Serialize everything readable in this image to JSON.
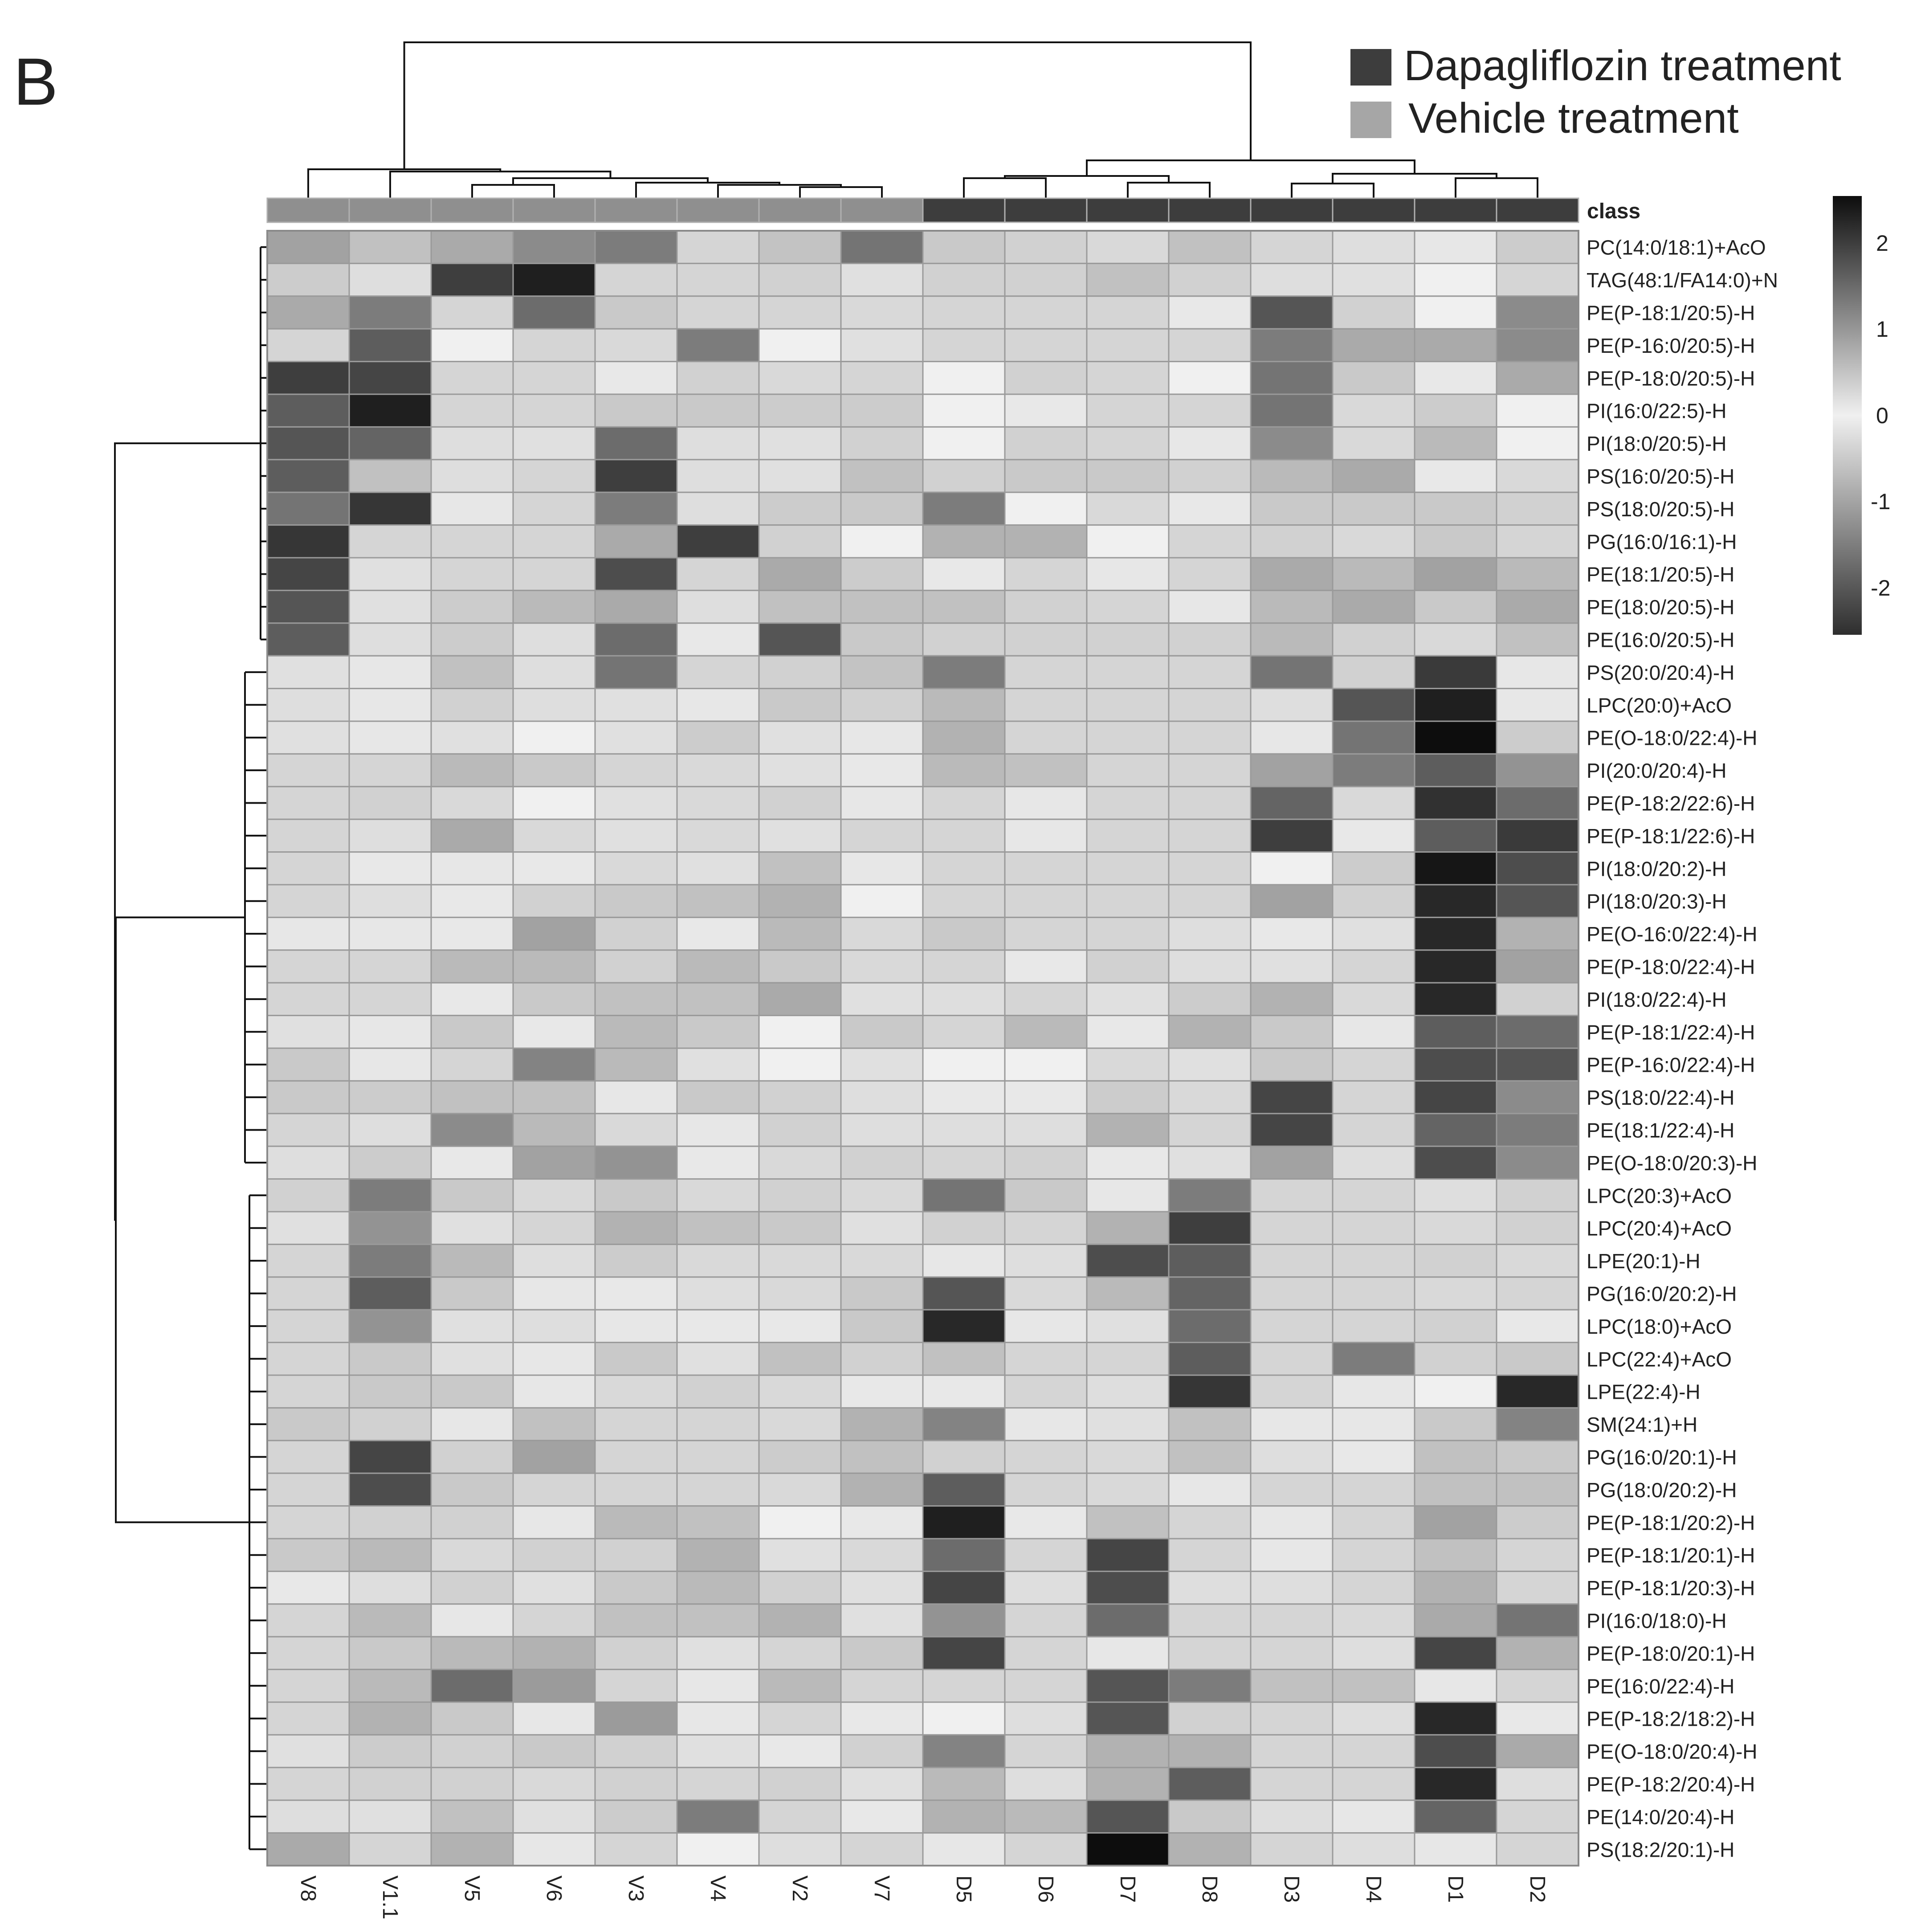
{
  "panel_label": "B",
  "legend": {
    "items": [
      {
        "label": "Dapagliflozin treatment",
        "color": "#3d3d3d"
      },
      {
        "label": "Vehicle treatment",
        "color": "#a6a6a6"
      }
    ]
  },
  "colorbar": {
    "ticks": [
      "2",
      "1",
      "0",
      "-1",
      "-2"
    ]
  },
  "chart_data": {
    "type": "heatmap",
    "title": "",
    "class_label": "class",
    "value_range": [
      -2.5,
      2.5
    ],
    "colormap": "black (high) through white (0) to dark gray (low)",
    "columns": [
      "V8",
      "V1.1",
      "V5",
      "V6",
      "V3",
      "V4",
      "V2",
      "V7",
      "D5",
      "D6",
      "D7",
      "D8",
      "D3",
      "D4",
      "D1",
      "D2"
    ],
    "column_class": [
      "Vehicle",
      "Vehicle",
      "Vehicle",
      "Vehicle",
      "Vehicle",
      "Vehicle",
      "Vehicle",
      "Vehicle",
      "Dapagliflozin",
      "Dapagliflozin",
      "Dapagliflozin",
      "Dapagliflozin",
      "Dapagliflozin",
      "Dapagliflozin",
      "Dapagliflozin",
      "Dapagliflozin"
    ],
    "rows": [
      "PC(14:0/18:1)+AcO",
      "TAG(48:1/FA14:0)+N",
      "PE(P-18:1/20:5)-H",
      "PE(P-16:0/20:5)-H",
      "PE(P-18:0/20:5)-H",
      "PI(16:0/22:5)-H",
      "PI(18:0/20:5)-H",
      "PS(16:0/20:5)-H",
      "PS(18:0/20:5)-H",
      "PG(16:0/16:1)-H",
      "PE(18:1/20:5)-H",
      "PE(18:0/20:5)-H",
      "PE(16:0/20:5)-H",
      "PS(20:0/20:4)-H",
      "LPC(20:0)+AcO",
      "PE(O-18:0/22:4)-H",
      "PI(20:0/20:4)-H",
      "PE(P-18:2/22:6)-H",
      "PE(P-18:1/22:6)-H",
      "PI(18:0/20:2)-H",
      "PI(18:0/20:3)-H",
      "PE(O-16:0/22:4)-H",
      "PE(P-18:0/22:4)-H",
      "PI(18:0/22:4)-H",
      "PE(P-18:1/22:4)-H",
      "PE(P-16:0/22:4)-H",
      "PS(18:0/22:4)-H",
      "PE(18:1/22:4)-H",
      "PE(O-18:0/20:3)-H",
      "LPC(20:3)+AcO",
      "LPC(20:4)+AcO",
      "LPE(20:1)-H",
      "PG(16:0/20:2)-H",
      "LPC(18:0)+AcO",
      "LPC(22:4)+AcO",
      "LPE(22:4)-H",
      "SM(24:1)+H",
      "PG(16:0/20:1)-H",
      "PG(18:0/20:2)-H",
      "PE(P-18:1/20:2)-H",
      "PE(P-18:1/20:1)-H",
      "PE(P-18:1/20:3)-H",
      "PI(16:0/18:0)-H",
      "PE(P-18:0/20:1)-H",
      "PE(16:0/22:4)-H",
      "PE(P-18:2/18:2)-H",
      "PE(O-18:0/20:4)-H",
      "PE(P-18:2/20:4)-H",
      "PE(14:0/20:4)-H",
      "PS(18:2/20:1)-H"
    ],
    "values": [
      [
        -1.0,
        -0.6,
        -0.9,
        -1.3,
        -1.5,
        0.3,
        0.5,
        -1.6,
        -0.5,
        -0.4,
        -0.3,
        -0.6,
        0.3,
        0.2,
        0.1,
        0.4
      ],
      [
        0.4,
        0.2,
        -2.3,
        2.3,
        0.3,
        0.3,
        -0.4,
        -0.2,
        -0.4,
        -0.4,
        -0.6,
        -0.4,
        0.2,
        -0.2,
        0.0,
        0.3
      ],
      [
        -0.9,
        -1.5,
        0.3,
        -1.7,
        -0.5,
        0.3,
        0.3,
        -0.3,
        0.3,
        0.3,
        0.3,
        -0.1,
        -2.0,
        -0.4,
        0.0,
        -1.3
      ],
      [
        0.3,
        -1.9,
        0.0,
        0.3,
        -0.3,
        -1.5,
        0.0,
        -0.2,
        0.3,
        0.3,
        0.3,
        0.3,
        -1.5,
        -0.9,
        -0.9,
        -1.3
      ],
      [
        -2.3,
        -2.2,
        0.3,
        0.3,
        -0.1,
        -0.4,
        -0.3,
        0.3,
        0.0,
        -0.4,
        0.3,
        0.0,
        -1.6,
        -0.5,
        -0.1,
        -0.9
      ],
      [
        -1.9,
        2.3,
        0.3,
        0.3,
        -0.5,
        -0.5,
        0.4,
        0.4,
        0.0,
        -0.1,
        0.3,
        0.3,
        -1.6,
        -0.3,
        0.4,
        0.0
      ],
      [
        -2.0,
        -1.8,
        0.2,
        -0.2,
        -1.7,
        0.2,
        -0.2,
        -0.4,
        0.0,
        -0.4,
        0.3,
        0.1,
        -1.3,
        -0.3,
        -0.7,
        0.0
      ],
      [
        -1.9,
        -0.6,
        0.2,
        0.3,
        -2.3,
        0.2,
        -0.2,
        -0.6,
        -0.4,
        -0.5,
        -0.5,
        -0.4,
        -0.7,
        -0.9,
        -0.1,
        -0.3
      ],
      [
        -1.6,
        -2.4,
        0.1,
        0.3,
        -1.5,
        0.2,
        0.4,
        -0.5,
        -1.5,
        0.0,
        -0.3,
        -0.1,
        -0.5,
        -0.5,
        -0.5,
        -0.4
      ],
      [
        -2.4,
        0.3,
        0.3,
        0.3,
        -0.9,
        -2.3,
        -0.4,
        0.0,
        -0.8,
        -0.8,
        0.0,
        0.3,
        -0.4,
        -0.3,
        -0.5,
        0.3
      ],
      [
        -2.2,
        -0.2,
        0.3,
        0.3,
        -2.1,
        0.3,
        -0.9,
        0.4,
        -0.1,
        0.3,
        0.1,
        0.3,
        -0.9,
        -0.7,
        -1.0,
        -0.7
      ],
      [
        -2.0,
        -0.2,
        0.4,
        -0.7,
        -0.9,
        0.2,
        -0.6,
        -0.6,
        -0.6,
        -0.4,
        0.3,
        0.1,
        -0.7,
        -0.9,
        -0.5,
        -0.9
      ],
      [
        -1.9,
        0.2,
        0.4,
        0.2,
        -1.7,
        -0.1,
        -2.0,
        -0.5,
        -0.4,
        -0.4,
        -0.4,
        -0.4,
        -0.7,
        -0.4,
        -0.3,
        -0.6
      ],
      [
        -0.2,
        0.1,
        -0.6,
        0.2,
        -1.6,
        0.3,
        -0.4,
        0.5,
        -1.5,
        0.3,
        0.3,
        0.3,
        -1.6,
        -0.4,
        2.0,
        0.1
      ],
      [
        0.2,
        0.1,
        -0.4,
        0.2,
        -0.2,
        0.1,
        -0.5,
        -0.4,
        -0.7,
        0.3,
        0.3,
        0.3,
        0.2,
        -2.0,
        2.3,
        0.1
      ],
      [
        -0.2,
        0.1,
        -0.2,
        0.0,
        -0.2,
        0.4,
        -0.2,
        0.1,
        -0.8,
        0.3,
        0.3,
        0.3,
        0.1,
        -1.6,
        2.5,
        0.4
      ],
      [
        0.3,
        0.3,
        -0.7,
        -0.5,
        0.3,
        -0.3,
        -0.2,
        -0.1,
        -0.7,
        -0.6,
        0.3,
        0.3,
        -1.0,
        -1.5,
        -1.9,
        -1.2
      ],
      [
        0.3,
        -0.4,
        -0.3,
        0.0,
        -0.2,
        -0.3,
        -0.4,
        0.1,
        0.3,
        0.1,
        0.3,
        0.3,
        -1.8,
        -0.3,
        2.1,
        -1.7
      ],
      [
        0.3,
        0.2,
        -0.9,
        -0.3,
        -0.2,
        -0.3,
        -0.2,
        0.3,
        0.3,
        0.1,
        0.3,
        0.3,
        -2.3,
        -0.1,
        -1.9,
        2.0
      ],
      [
        0.3,
        -0.1,
        0.1,
        -0.1,
        -0.3,
        -0.2,
        -0.6,
        0.1,
        0.3,
        0.3,
        0.3,
        0.3,
        0.0,
        0.4,
        2.4,
        -2.1
      ],
      [
        0.3,
        0.2,
        -0.1,
        -0.4,
        -0.5,
        -0.6,
        -0.8,
        0.0,
        0.3,
        0.3,
        0.3,
        0.3,
        -1.0,
        -0.4,
        2.2,
        -2.0
      ],
      [
        0.1,
        0.1,
        -0.1,
        -1.0,
        -0.4,
        -0.1,
        -0.7,
        -0.3,
        -0.5,
        0.3,
        0.3,
        0.2,
        -0.1,
        -0.2,
        2.2,
        -0.8
      ],
      [
        0.3,
        0.3,
        -0.7,
        -0.7,
        -0.4,
        -0.7,
        -0.5,
        -0.3,
        0.3,
        -0.1,
        -0.4,
        0.2,
        -0.2,
        0.3,
        2.2,
        -1.0
      ],
      [
        0.3,
        0.3,
        -0.1,
        -0.5,
        -0.6,
        -0.6,
        -0.9,
        -0.2,
        0.2,
        0.3,
        -0.2,
        0.4,
        -0.8,
        -0.3,
        2.2,
        -0.4
      ],
      [
        -0.2,
        0.1,
        -0.5,
        -0.1,
        -0.7,
        -0.5,
        0.0,
        -0.5,
        0.3,
        -0.7,
        -0.1,
        -0.8,
        -0.5,
        0.1,
        -1.9,
        -1.7
      ],
      [
        -0.5,
        0.1,
        0.3,
        -1.4,
        -0.7,
        -0.2,
        0.0,
        -0.2,
        0.0,
        0.0,
        -0.3,
        -0.2,
        -0.5,
        0.3,
        -2.1,
        -2.0
      ],
      [
        -0.5,
        0.4,
        -0.6,
        -0.6,
        0.1,
        -0.5,
        -0.4,
        0.2,
        -0.1,
        -0.1,
        0.4,
        -0.3,
        -2.2,
        0.3,
        -2.2,
        -1.3
      ],
      [
        0.3,
        0.2,
        -1.3,
        -0.7,
        -0.3,
        0.1,
        -0.4,
        0.2,
        0.2,
        0.2,
        -0.8,
        0.3,
        -2.2,
        0.3,
        -1.8,
        -1.5
      ],
      [
        0.2,
        0.4,
        -0.1,
        -1.0,
        -1.2,
        -0.1,
        -0.3,
        -0.4,
        0.3,
        -0.4,
        -0.1,
        -0.2,
        -1.0,
        0.2,
        -2.1,
        -1.3
      ],
      [
        -0.4,
        -1.5,
        -0.5,
        -0.3,
        -0.5,
        -0.3,
        -0.4,
        -0.3,
        -1.6,
        -0.5,
        0.1,
        -1.5,
        0.3,
        0.3,
        0.2,
        -0.4
      ],
      [
        -0.2,
        -1.2,
        -0.2,
        0.3,
        -0.8,
        -0.6,
        -0.5,
        -0.2,
        -0.4,
        0.3,
        -0.8,
        -2.3,
        0.3,
        0.3,
        -0.3,
        -0.4
      ],
      [
        0.3,
        -1.5,
        -0.7,
        0.2,
        0.4,
        -0.3,
        -0.3,
        -0.3,
        0.1,
        0.2,
        -2.1,
        -1.9,
        0.3,
        0.3,
        -0.4,
        -0.3
      ],
      [
        0.3,
        -1.9,
        -0.5,
        0.1,
        -0.1,
        0.2,
        -0.3,
        -0.5,
        -2.0,
        -0.3,
        -0.7,
        -1.8,
        0.3,
        0.3,
        -0.3,
        0.3
      ],
      [
        0.3,
        -1.2,
        -0.2,
        0.2,
        0.1,
        -0.1,
        -0.1,
        -0.5,
        2.2,
        0.1,
        -0.2,
        -1.7,
        0.3,
        0.3,
        -0.4,
        -0.1
      ],
      [
        0.3,
        -0.5,
        -0.2,
        0.1,
        -0.5,
        -0.2,
        -0.6,
        -0.4,
        -0.6,
        0.3,
        0.3,
        -1.9,
        0.3,
        -1.5,
        -0.4,
        -0.5
      ],
      [
        0.3,
        -0.5,
        -0.5,
        0.1,
        -0.3,
        -0.4,
        -0.3,
        -0.1,
        -0.1,
        0.3,
        0.2,
        -2.4,
        0.3,
        0.1,
        0.0,
        2.2
      ],
      [
        -0.5,
        -0.4,
        0.1,
        -0.6,
        0.3,
        0.3,
        -0.3,
        -0.8,
        -1.4,
        0.1,
        -0.2,
        -0.6,
        0.1,
        0.1,
        -0.5,
        -1.4
      ],
      [
        0.3,
        -2.2,
        -0.4,
        -1.0,
        0.3,
        0.3,
        0.4,
        -0.6,
        -0.4,
        0.3,
        -0.3,
        -0.6,
        0.2,
        -0.1,
        -0.6,
        -0.5
      ],
      [
        0.3,
        -2.1,
        -0.5,
        0.3,
        0.3,
        0.3,
        -0.3,
        -0.8,
        -1.9,
        0.3,
        -0.3,
        0.1,
        0.3,
        0.3,
        -0.6,
        -0.6
      ],
      [
        0.3,
        -0.4,
        -0.4,
        0.1,
        -0.7,
        -0.6,
        0.0,
        -0.1,
        2.3,
        -0.1,
        -0.6,
        0.3,
        0.1,
        0.3,
        -1.0,
        0.4
      ],
      [
        -0.5,
        -0.7,
        -0.3,
        -0.4,
        -0.4,
        -0.8,
        -0.2,
        -0.3,
        -1.7,
        0.3,
        -2.2,
        0.3,
        0.1,
        0.3,
        -0.6,
        0.3
      ],
      [
        -0.1,
        0.2,
        -0.4,
        -0.2,
        -0.5,
        -0.7,
        -0.4,
        -0.2,
        -2.2,
        0.2,
        -2.1,
        0.2,
        0.2,
        0.3,
        -0.8,
        0.3
      ],
      [
        0.3,
        -0.7,
        0.1,
        0.3,
        -0.6,
        -0.6,
        -0.8,
        -0.2,
        -1.2,
        0.3,
        -1.7,
        0.3,
        0.3,
        -0.3,
        -0.9,
        -1.6
      ],
      [
        0.3,
        -0.5,
        -0.7,
        -0.8,
        -0.4,
        -0.2,
        0.3,
        -0.5,
        -2.2,
        0.3,
        0.1,
        0.3,
        0.3,
        0.2,
        -2.2,
        -0.8
      ],
      [
        0.3,
        -0.7,
        -1.7,
        -1.1,
        0.3,
        0.1,
        -0.7,
        0.3,
        0.3,
        0.3,
        -2.0,
        -1.5,
        -0.6,
        -0.6,
        0.1,
        0.3
      ],
      [
        0.3,
        -0.8,
        -0.5,
        0.1,
        -1.1,
        0.1,
        0.3,
        -0.1,
        0.0,
        0.2,
        -2.0,
        -0.4,
        0.3,
        0.2,
        2.2,
        -0.1
      ],
      [
        -0.2,
        0.4,
        -0.4,
        -0.5,
        -0.4,
        -0.2,
        -0.1,
        -0.4,
        -1.4,
        0.3,
        -0.8,
        -0.8,
        0.3,
        0.3,
        -2.1,
        -0.9
      ],
      [
        0.3,
        -0.4,
        -0.4,
        -0.3,
        -0.4,
        0.3,
        -0.4,
        -0.2,
        -0.7,
        0.2,
        -0.8,
        -1.9,
        0.3,
        0.3,
        2.2,
        0.2
      ],
      [
        0.2,
        -0.2,
        -0.6,
        -0.2,
        0.4,
        -1.5,
        0.3,
        -0.1,
        -0.8,
        -0.7,
        -2.0,
        -0.5,
        0.2,
        0.1,
        -1.8,
        0.3
      ],
      [
        -0.9,
        0.3,
        -0.8,
        0.1,
        0.3,
        0.0,
        0.2,
        0.3,
        0.1,
        0.3,
        2.5,
        -0.8,
        0.3,
        0.2,
        0.1,
        0.3
      ]
    ]
  }
}
